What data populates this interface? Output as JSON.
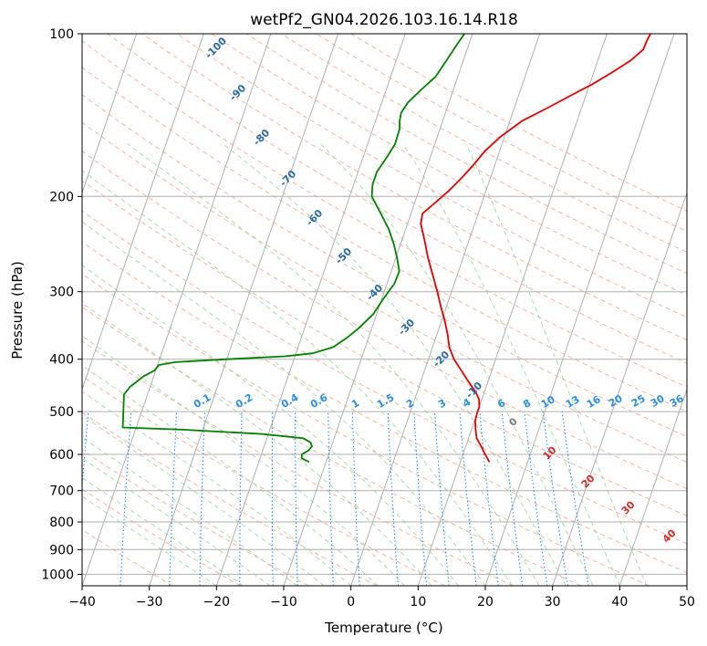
{
  "chart_data": {
    "type": "line",
    "subtype": "skew-t log-p diagram",
    "title": "wetPf2_GN04.2026.103.16.14.R18",
    "xlabel": "Temperature (°C)",
    "ylabel": "Pressure (hPa)",
    "xlim": [
      -40,
      50
    ],
    "ylim": [
      1050,
      100
    ],
    "y_scale": "log",
    "x_ticks": [
      -40,
      -30,
      -20,
      -10,
      0,
      10,
      20,
      30,
      40,
      50
    ],
    "y_ticks": [
      100,
      200,
      300,
      400,
      500,
      600,
      700,
      800,
      900,
      1000
    ],
    "grid": true,
    "legend": "none",
    "isotherms_color": "#b0b0b0",
    "dry_adiabat_color": "#f5a88c",
    "moist_adiabat_color": "#9bd19b",
    "mixing_ratio_color": "#2a8ee6",
    "series": [
      {
        "color": "#e00000",
        "points": [
          {
            "p": 620,
            "t": 14.3
          },
          {
            "p": 600,
            "t": 13.3
          },
          {
            "p": 580,
            "t": 12.3
          },
          {
            "p": 560,
            "t": 11.2
          },
          {
            "p": 540,
            "t": 10.6
          },
          {
            "p": 520,
            "t": 10.1
          },
          {
            "p": 505,
            "t": 10.0
          },
          {
            "p": 490,
            "t": 10.0
          },
          {
            "p": 475,
            "t": 9.6
          },
          {
            "p": 460,
            "t": 8.7
          },
          {
            "p": 440,
            "t": 7.1
          },
          {
            "p": 420,
            "t": 5.5
          },
          {
            "p": 400,
            "t": 3.8
          },
          {
            "p": 380,
            "t": 2.5
          },
          {
            "p": 360,
            "t": 1.6
          },
          {
            "p": 340,
            "t": 0.5
          },
          {
            "p": 320,
            "t": -0.8
          },
          {
            "p": 300,
            "t": -2.1
          },
          {
            "p": 280,
            "t": -3.6
          },
          {
            "p": 260,
            "t": -5.2
          },
          {
            "p": 240,
            "t": -6.7
          },
          {
            "p": 225,
            "t": -8.0
          },
          {
            "p": 215,
            "t": -8.3
          },
          {
            "p": 205,
            "t": -6.9
          },
          {
            "p": 195,
            "t": -5.5
          },
          {
            "p": 185,
            "t": -4.3
          },
          {
            "p": 175,
            "t": -3.2
          },
          {
            "p": 165,
            "t": -2.2
          },
          {
            "p": 155,
            "t": -0.6
          },
          {
            "p": 145,
            "t": 1.8
          },
          {
            "p": 137,
            "t": 5.0
          },
          {
            "p": 130,
            "t": 7.8
          },
          {
            "p": 124,
            "t": 10.4
          },
          {
            "p": 118,
            "t": 12.7
          },
          {
            "p": 112,
            "t": 14.9
          },
          {
            "p": 107,
            "t": 16.2
          },
          {
            "p": 103,
            "t": 16.3
          },
          {
            "p": 100,
            "t": 16.5
          }
        ]
      },
      {
        "color": "#008000",
        "points": [
          {
            "p": 620,
            "t": -12.5
          },
          {
            "p": 610,
            "t": -13.8
          },
          {
            "p": 600,
            "t": -14.0
          },
          {
            "p": 590,
            "t": -13.2
          },
          {
            "p": 580,
            "t": -12.9
          },
          {
            "p": 570,
            "t": -13.3
          },
          {
            "p": 560,
            "t": -14.6
          },
          {
            "p": 550,
            "t": -21.0
          },
          {
            "p": 540,
            "t": -33.0
          },
          {
            "p": 535,
            "t": -42.0
          },
          {
            "p": 465,
            "t": -43.5
          },
          {
            "p": 450,
            "t": -43.0
          },
          {
            "p": 430,
            "t": -41.5
          },
          {
            "p": 420,
            "t": -40.2
          },
          {
            "p": 410,
            "t": -39.8
          },
          {
            "p": 405,
            "t": -37.5
          },
          {
            "p": 400,
            "t": -30.0
          },
          {
            "p": 395,
            "t": -21.5
          },
          {
            "p": 390,
            "t": -17.5
          },
          {
            "p": 380,
            "t": -14.8
          },
          {
            "p": 365,
            "t": -13.2
          },
          {
            "p": 350,
            "t": -11.9
          },
          {
            "p": 330,
            "t": -10.5
          },
          {
            "p": 310,
            "t": -9.8
          },
          {
            "p": 290,
            "t": -8.9
          },
          {
            "p": 275,
            "t": -8.8
          },
          {
            "p": 260,
            "t": -9.8
          },
          {
            "p": 245,
            "t": -11.0
          },
          {
            "p": 230,
            "t": -12.5
          },
          {
            "p": 215,
            "t": -14.5
          },
          {
            "p": 200,
            "t": -16.7
          },
          {
            "p": 190,
            "t": -17.2
          },
          {
            "p": 180,
            "t": -17.2
          },
          {
            "p": 170,
            "t": -16.5
          },
          {
            "p": 160,
            "t": -15.9
          },
          {
            "p": 150,
            "t": -16.0
          },
          {
            "p": 145,
            "t": -16.4
          },
          {
            "p": 140,
            "t": -16.6
          },
          {
            "p": 134,
            "t": -16.1
          },
          {
            "p": 127,
            "t": -14.8
          },
          {
            "p": 120,
            "t": -13.3
          },
          {
            "p": 113,
            "t": -12.6
          },
          {
            "p": 106,
            "t": -11.9
          },
          {
            "p": 100,
            "t": -11.2
          }
        ]
      }
    ],
    "dry_adiabat_labels": [
      "-100",
      "-90",
      "-80",
      "-70",
      "-60",
      "-50",
      "-40",
      "-30",
      "-20",
      "-10"
    ],
    "mixing_ratio_labels": [
      "0.1",
      "0.2",
      "0.4",
      "0.6",
      "1",
      "1.5",
      "2",
      "3",
      "4",
      "6",
      "8",
      "10",
      "13",
      "16",
      "20",
      "25",
      "30",
      "36"
    ],
    "moist_adiabat_labels": [
      "0",
      "10",
      "20",
      "30",
      "40"
    ]
  }
}
